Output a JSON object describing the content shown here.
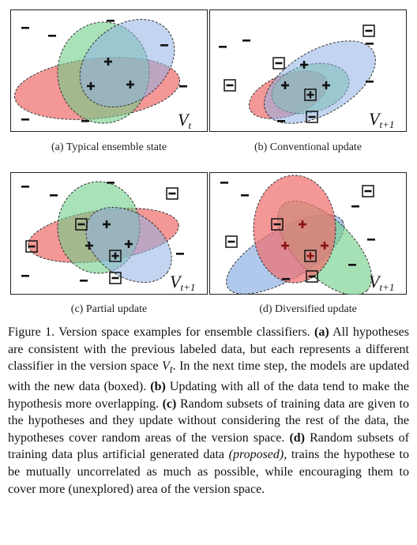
{
  "panels": [
    {
      "id": "a",
      "label": "V",
      "subscript": "t",
      "caption": "(a)  Typical ensemble state"
    },
    {
      "id": "b",
      "label": "V",
      "subscript": "t+1",
      "caption": "(b)  Conventional update"
    },
    {
      "id": "c",
      "label": "V",
      "subscript": "t+1",
      "caption": "(c)  Partial update"
    },
    {
      "id": "d",
      "label": "V",
      "subscript": "t+1",
      "caption": "(d)  Diversified update"
    }
  ],
  "caption": {
    "figure_label": "Figure 1.",
    "t1": " Version space examples for ensemble classifiers. ",
    "b_a": "(a)",
    "t2": " All hypotheses are consistent with the previous labeled data, but each represents a different classifier in the version space ",
    "vt_label": "V",
    "vt_sub": "t",
    "t3": ". In the next time step, the models are updated with the new data (boxed). ",
    "b_b": "(b)",
    "t4": " Updating with all of the data tend to make the hypothesis more overlapping.  ",
    "b_c": "(c)",
    "t5": " Random subsets of training data are given to the hypotheses and they update without considering the rest of the data, the hypotheses cover random areas of the version space. ",
    "b_d": "(d)",
    "t6": " Random subsets of training data plus artificial generated data ",
    "i_proposed": "(proposed)",
    "t7": ", trains the hypothese to be mutually uncorrelated as much as possible, while encouraging them to cover more (unexplored) area of the version space."
  },
  "colors": {
    "red": "#ee6f6f",
    "green": "#7fd596",
    "blue": "#9ab7e6",
    "plus_dark": "#111111",
    "plus_red": "#8a1111"
  }
}
